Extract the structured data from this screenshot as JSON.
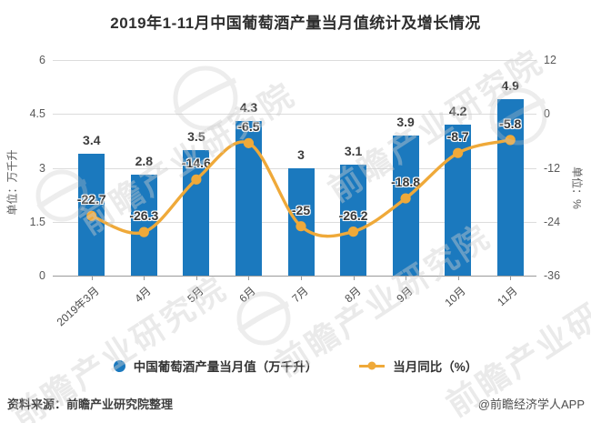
{
  "title": "2019年1-11月中国葡萄酒产量当月值统计及增长情况",
  "chart_data": {
    "type": "bar+line",
    "categories": [
      "2019年3月",
      "4月",
      "5月",
      "6月",
      "7月",
      "8月",
      "9月",
      "10月",
      "11月"
    ],
    "series": [
      {
        "name": "中国葡萄酒产量当月值（万千升）",
        "type": "bar",
        "axis": "left",
        "color": "#1b79be",
        "values": [
          3.4,
          2.8,
          3.5,
          4.3,
          3,
          3.1,
          3.9,
          4.2,
          4.9
        ]
      },
      {
        "name": "当月同比（%）",
        "type": "line",
        "axis": "right",
        "color": "#efa939",
        "values": [
          -22.7,
          -26.3,
          -14.6,
          -6.5,
          -25,
          -26.2,
          -18.8,
          -8.7,
          -5.8
        ]
      }
    ],
    "left_axis": {
      "title": "单位：万千升",
      "min": 0,
      "max": 6,
      "ticks": [
        0,
        1.5,
        3,
        4.5,
        6
      ]
    },
    "right_axis": {
      "title": "单位：%",
      "min": -36,
      "max": 12,
      "ticks": [
        -36,
        -24,
        -12,
        0,
        12
      ]
    },
    "grid": true,
    "legend_position": "bottom"
  },
  "legend": {
    "items": [
      {
        "label": "中国葡萄酒产量当月值（万千升）",
        "marker": "circle",
        "color": "#1b79be"
      },
      {
        "label": "当月同比（%）",
        "marker": "line-dot",
        "color": "#efa939"
      }
    ]
  },
  "footer": {
    "source": "资料来源：前瞻产业研究院整理",
    "credit": "@前瞻经济学人APP"
  },
  "watermark": {
    "text": "前瞻产业研究院"
  },
  "colors": {
    "bar": "#1b79be",
    "line": "#efa939",
    "grid": "#dcdcdc",
    "axis_line": "#9a9a9a",
    "axis_text": "#595959",
    "data_label": "#3d3d3d",
    "title": "#2e2e2e"
  }
}
